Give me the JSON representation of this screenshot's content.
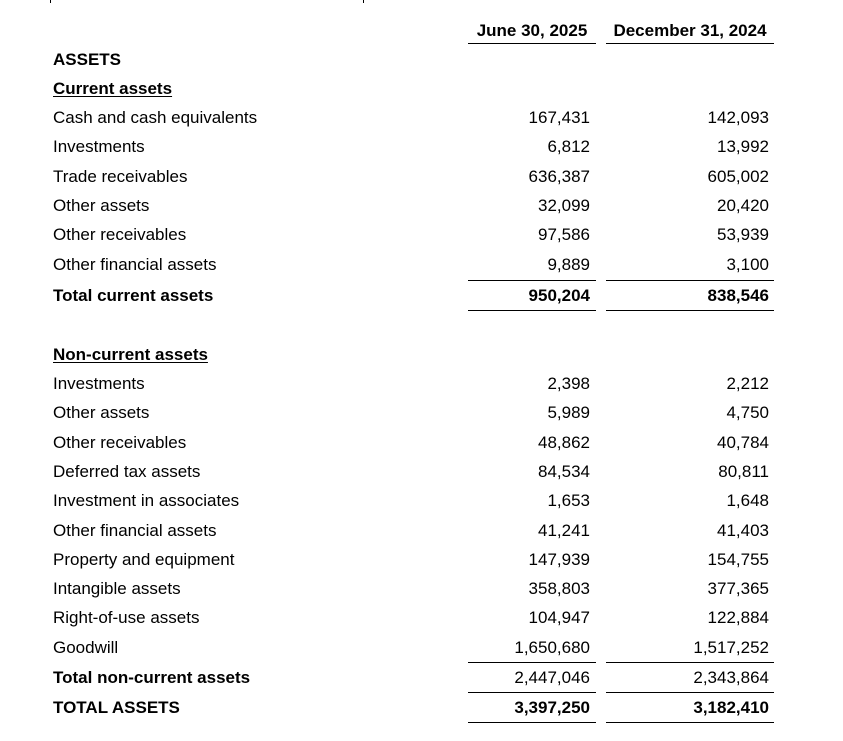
{
  "columns": [
    "June 30, 2025",
    "December 31, 2024"
  ],
  "heading": "ASSETS",
  "current": {
    "title": "Current assets",
    "items": [
      {
        "label": "Cash and cash equivalents",
        "v1": "167,431",
        "v2": "142,093"
      },
      {
        "label": "Investments",
        "v1": "6,812",
        "v2": "13,992"
      },
      {
        "label": "Trade receivables",
        "v1": "636,387",
        "v2": "605,002"
      },
      {
        "label": "Other assets",
        "v1": "32,099",
        "v2": "20,420"
      },
      {
        "label": "Other receivables",
        "v1": "97,586",
        "v2": "53,939"
      },
      {
        "label": "Other financial assets",
        "v1": "9,889",
        "v2": "3,100"
      }
    ],
    "total": {
      "label": "Total current assets",
      "v1": "950,204",
      "v2": "838,546"
    }
  },
  "noncurrent": {
    "title": "Non-current assets",
    "items": [
      {
        "label": "Investments",
        "v1": "2,398",
        "v2": "2,212"
      },
      {
        "label": "Other assets",
        "v1": "5,989",
        "v2": "4,750"
      },
      {
        "label": "Other receivables",
        "v1": "48,862",
        "v2": "40,784"
      },
      {
        "label": "Deferred tax assets",
        "v1": "84,534",
        "v2": "80,811"
      },
      {
        "label": "Investment in associates",
        "v1": "1,653",
        "v2": "1,648"
      },
      {
        "label": "Other financial assets",
        "v1": "41,241",
        "v2": "41,403"
      },
      {
        "label": "Property and equipment",
        "v1": "147,939",
        "v2": "154,755"
      },
      {
        "label": "Intangible assets",
        "v1": "358,803",
        "v2": "377,365"
      },
      {
        "label": "Right-of-use assets",
        "v1": "104,947",
        "v2": "122,884"
      },
      {
        "label": "Goodwill",
        "v1": "1,650,680",
        "v2": "1,517,252"
      }
    ],
    "total": {
      "label": "Total non-current assets",
      "v1": "2,447,046",
      "v2": "2,343,864"
    }
  },
  "grand_total": {
    "label": "TOTAL ASSETS",
    "v1": "3,397,250",
    "v2": "3,182,410"
  }
}
